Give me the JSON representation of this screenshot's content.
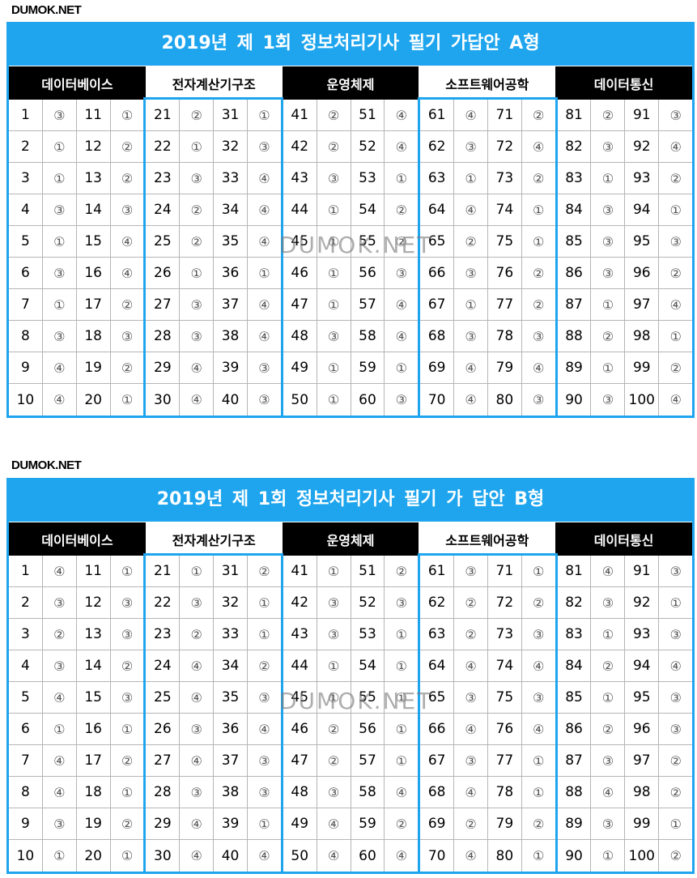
{
  "brand": "DUMOK.NET",
  "watermark": "DUMOK.NET",
  "colors": {
    "accent": "#1ea5ee",
    "header_dark": "#000000"
  },
  "tables": [
    {
      "title": "2019년 제 1회 정보처리기사 필기 가답안 A형",
      "sections": [
        {
          "name": "데이터베이스",
          "rows": [
            [
              "1",
              "③",
              "11",
              "①"
            ],
            [
              "2",
              "①",
              "12",
              "②"
            ],
            [
              "3",
              "①",
              "13",
              "②"
            ],
            [
              "4",
              "③",
              "14",
              "③"
            ],
            [
              "5",
              "①",
              "15",
              "④"
            ],
            [
              "6",
              "③",
              "16",
              "④"
            ],
            [
              "7",
              "①",
              "17",
              "②"
            ],
            [
              "8",
              "③",
              "18",
              "③"
            ],
            [
              "9",
              "④",
              "19",
              "②"
            ],
            [
              "10",
              "④",
              "20",
              "①"
            ]
          ]
        },
        {
          "name": "전자계산기구조",
          "rows": [
            [
              "21",
              "②",
              "31",
              "①"
            ],
            [
              "22",
              "①",
              "32",
              "③"
            ],
            [
              "23",
              "③",
              "33",
              "④"
            ],
            [
              "24",
              "②",
              "34",
              "④"
            ],
            [
              "25",
              "②",
              "35",
              "④"
            ],
            [
              "26",
              "①",
              "36",
              "①"
            ],
            [
              "27",
              "③",
              "37",
              "④"
            ],
            [
              "28",
              "③",
              "38",
              "④"
            ],
            [
              "29",
              "④",
              "39",
              "③"
            ],
            [
              "30",
              "④",
              "40",
              "③"
            ]
          ]
        },
        {
          "name": "운영체제",
          "rows": [
            [
              "41",
              "②",
              "51",
              "④"
            ],
            [
              "42",
              "②",
              "52",
              "④"
            ],
            [
              "43",
              "③",
              "53",
              "①"
            ],
            [
              "44",
              "①",
              "54",
              "②"
            ],
            [
              "45",
              "①",
              "55",
              "②"
            ],
            [
              "46",
              "①",
              "56",
              "③"
            ],
            [
              "47",
              "①",
              "57",
              "④"
            ],
            [
              "48",
              "③",
              "58",
              "④"
            ],
            [
              "49",
              "①",
              "59",
              "①"
            ],
            [
              "50",
              "①",
              "60",
              "③"
            ]
          ]
        },
        {
          "name": "소프트웨어공학",
          "rows": [
            [
              "61",
              "④",
              "71",
              "②"
            ],
            [
              "62",
              "③",
              "72",
              "④"
            ],
            [
              "63",
              "①",
              "73",
              "②"
            ],
            [
              "64",
              "④",
              "74",
              "①"
            ],
            [
              "65",
              "②",
              "75",
              "①"
            ],
            [
              "66",
              "③",
              "76",
              "②"
            ],
            [
              "67",
              "①",
              "77",
              "②"
            ],
            [
              "68",
              "③",
              "78",
              "③"
            ],
            [
              "69",
              "④",
              "79",
              "④"
            ],
            [
              "70",
              "④",
              "80",
              "③"
            ]
          ]
        },
        {
          "name": "데이터통신",
          "rows": [
            [
              "81",
              "②",
              "91",
              "③"
            ],
            [
              "82",
              "③",
              "92",
              "④"
            ],
            [
              "83",
              "①",
              "93",
              "②"
            ],
            [
              "84",
              "③",
              "94",
              "①"
            ],
            [
              "85",
              "③",
              "95",
              "③"
            ],
            [
              "86",
              "③",
              "96",
              "②"
            ],
            [
              "87",
              "①",
              "97",
              "④"
            ],
            [
              "88",
              "②",
              "98",
              "①"
            ],
            [
              "89",
              "①",
              "99",
              "②"
            ],
            [
              "90",
              "③",
              "100",
              "④"
            ]
          ]
        }
      ]
    },
    {
      "title": "2019년 제 1회 정보처리기사 필기 가 답안 B형",
      "sections": [
        {
          "name": "데이터베이스",
          "rows": [
            [
              "1",
              "④",
              "11",
              "①"
            ],
            [
              "2",
              "③",
              "12",
              "③"
            ],
            [
              "3",
              "②",
              "13",
              "③"
            ],
            [
              "4",
              "③",
              "14",
              "②"
            ],
            [
              "5",
              "④",
              "15",
              "③"
            ],
            [
              "6",
              "①",
              "16",
              "①"
            ],
            [
              "7",
              "④",
              "17",
              "②"
            ],
            [
              "8",
              "④",
              "18",
              "①"
            ],
            [
              "9",
              "③",
              "19",
              "②"
            ],
            [
              "10",
              "①",
              "20",
              "①"
            ]
          ]
        },
        {
          "name": "전자계산기구조",
          "rows": [
            [
              "21",
              "①",
              "31",
              "②"
            ],
            [
              "22",
              "③",
              "32",
              "①"
            ],
            [
              "23",
              "②",
              "33",
              "①"
            ],
            [
              "24",
              "④",
              "34",
              "②"
            ],
            [
              "25",
              "④",
              "35",
              "③"
            ],
            [
              "26",
              "③",
              "36",
              "④"
            ],
            [
              "27",
              "④",
              "37",
              "③"
            ],
            [
              "28",
              "③",
              "38",
              "③"
            ],
            [
              "29",
              "④",
              "39",
              "①"
            ],
            [
              "30",
              "④",
              "40",
              "④"
            ]
          ]
        },
        {
          "name": "운영체제",
          "rows": [
            [
              "41",
              "①",
              "51",
              "②"
            ],
            [
              "42",
              "③",
              "52",
              "③"
            ],
            [
              "43",
              "③",
              "53",
              "①"
            ],
            [
              "44",
              "①",
              "54",
              "①"
            ],
            [
              "45",
              "①",
              "55",
              "①"
            ],
            [
              "46",
              "②",
              "56",
              "①"
            ],
            [
              "47",
              "②",
              "57",
              "①"
            ],
            [
              "48",
              "③",
              "58",
              "④"
            ],
            [
              "49",
              "④",
              "59",
              "②"
            ],
            [
              "50",
              "④",
              "60",
              "④"
            ]
          ]
        },
        {
          "name": "소프트웨어공학",
          "rows": [
            [
              "61",
              "③",
              "71",
              "①"
            ],
            [
              "62",
              "②",
              "72",
              "②"
            ],
            [
              "63",
              "②",
              "73",
              "③"
            ],
            [
              "64",
              "④",
              "74",
              "④"
            ],
            [
              "65",
              "③",
              "75",
              "③"
            ],
            [
              "66",
              "④",
              "76",
              "④"
            ],
            [
              "67",
              "③",
              "77",
              "①"
            ],
            [
              "68",
              "④",
              "78",
              "①"
            ],
            [
              "69",
              "②",
              "79",
              "②"
            ],
            [
              "70",
              "④",
              "80",
              "①"
            ]
          ]
        },
        {
          "name": "데이터통신",
          "rows": [
            [
              "81",
              "④",
              "91",
              "③"
            ],
            [
              "82",
              "③",
              "92",
              "①"
            ],
            [
              "83",
              "①",
              "93",
              "③"
            ],
            [
              "84",
              "②",
              "94",
              "④"
            ],
            [
              "85",
              "①",
              "95",
              "③"
            ],
            [
              "86",
              "②",
              "96",
              "③"
            ],
            [
              "87",
              "③",
              "97",
              "②"
            ],
            [
              "88",
              "④",
              "98",
              "②"
            ],
            [
              "89",
              "③",
              "99",
              "①"
            ],
            [
              "90",
              "①",
              "100",
              "②"
            ]
          ]
        }
      ]
    }
  ]
}
